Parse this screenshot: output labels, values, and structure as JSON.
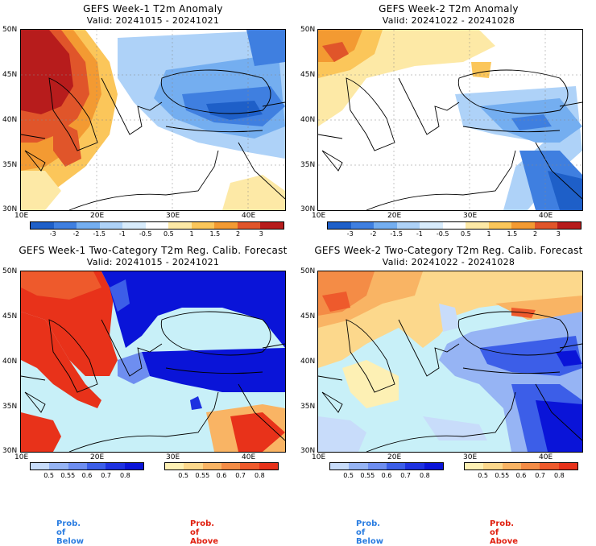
{
  "panels": [
    {
      "id": "p1",
      "title": "GEFS Week-1 T2m Anomaly",
      "valid": "Valid: 20241015 - 20241021"
    },
    {
      "id": "p2",
      "title": "GEFS Week-2 T2m Anomaly",
      "valid": "Valid: 20241022 - 20241028"
    },
    {
      "id": "p3",
      "title": "GEFS Week-1 Two-Category T2m Reg. Calib. Forecast",
      "valid": "Valid: 20241015 - 20241021"
    },
    {
      "id": "p4",
      "title": "GEFS Week-2 Two-Category T2m Reg. Calib. Forecast",
      "valid": "Valid: 20241022 - 20241028"
    }
  ],
  "axes": {
    "lat_labels": [
      "50N",
      "45N",
      "40N",
      "35N",
      "30N"
    ],
    "lon_labels": [
      "10E",
      "20E",
      "30E",
      "40E"
    ]
  },
  "anomaly_colorbar": {
    "labels": [
      "-3",
      "-2",
      "-1.5",
      "-1",
      "-0.5",
      "0.5",
      "1",
      "1.5",
      "2",
      "3"
    ],
    "colors": [
      "#1e5fc8",
      "#3f7fe0",
      "#74aef0",
      "#aed2f8",
      "#d8ecfc",
      "#ffffff",
      "#fde9a6",
      "#fbc65a",
      "#f39a32",
      "#e0552a",
      "#b71c1c"
    ]
  },
  "prob_below_colorbar": {
    "labels": [
      "0.5",
      "0.55",
      "0.6",
      "0.7",
      "0.8"
    ],
    "colors": [
      "#c8dcfa",
      "#96b4f4",
      "#6e8ef0",
      "#3c5ee8",
      "#1e32e0",
      "#0a14d8"
    ]
  },
  "prob_above_colorbar": {
    "labels": [
      "0.5",
      "0.55",
      "0.6",
      "0.7",
      "0.8"
    ],
    "colors": [
      "#fdf0b4",
      "#fcd88c",
      "#f9b464",
      "#f48c46",
      "#ee5a2c",
      "#e8321a"
    ]
  },
  "legend": {
    "below_label": "Prob. of Below",
    "above_label": "Prob. of Above",
    "below_color": "#2a7de1",
    "above_color": "#e02010"
  },
  "map_colors": {
    "sea_prob": "#c8f0f8",
    "warm_strong": "#e8321a",
    "cold_strong": "#0a14d8"
  }
}
